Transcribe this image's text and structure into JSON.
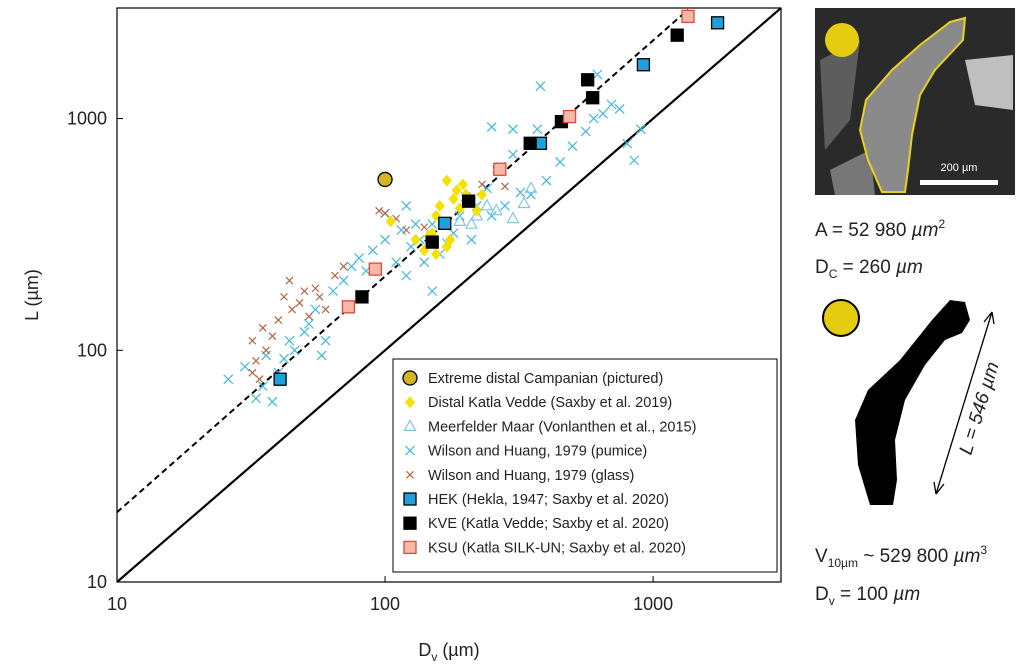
{
  "chart_data": {
    "type": "scatter",
    "xscale": "log",
    "yscale": "log",
    "xlabel": {
      "main": "D",
      "sub": "v",
      "unit": " (µm)"
    },
    "ylabel": "L (µm)",
    "xlim": [
      10,
      3000
    ],
    "ylim": [
      10,
      3000
    ],
    "xticks": [
      10,
      100,
      1000
    ],
    "yticks": [
      10,
      100,
      1000
    ],
    "legend": "lower right",
    "lines": [
      {
        "style": "solid",
        "color": "#000000",
        "x": [
          10,
          3000
        ],
        "y": [
          10,
          3000
        ]
      },
      {
        "style": "dashed",
        "color": "#000000",
        "x": [
          10,
          1350
        ],
        "y": [
          20,
          2950
        ]
      }
    ],
    "series": [
      {
        "name": "Wilson and Huang, 1979 (pumice)",
        "marker": "x",
        "color": "#3fb8e6",
        "x": [
          26,
          30,
          33,
          35,
          36,
          38,
          40,
          42,
          44,
          46,
          50,
          52,
          55,
          58,
          60,
          64,
          70,
          75,
          80,
          85,
          90,
          100,
          110,
          115,
          120,
          125,
          135,
          140,
          150,
          160,
          170,
          180,
          190,
          200,
          210,
          220,
          240,
          250,
          270,
          280,
          300,
          320,
          350,
          370,
          400,
          450,
          500,
          560,
          600,
          650,
          700,
          750,
          800,
          850,
          900,
          620,
          250,
          300,
          380,
          150,
          130,
          120,
          100
        ],
        "y": [
          75,
          85,
          62,
          70,
          95,
          60,
          80,
          92,
          110,
          100,
          120,
          130,
          150,
          95,
          110,
          180,
          200,
          230,
          250,
          220,
          270,
          300,
          240,
          330,
          210,
          280,
          300,
          240,
          350,
          260,
          290,
          320,
          380,
          460,
          300,
          420,
          500,
          380,
          620,
          420,
          700,
          480,
          470,
          900,
          540,
          650,
          760,
          880,
          1000,
          1050,
          1150,
          1100,
          780,
          660,
          900,
          1550,
          920,
          900,
          1380,
          180,
          350,
          420,
          390
        ]
      },
      {
        "name": "Wilson and Huang, 1979 (glass)",
        "marker": "xs",
        "color": "#b5633e",
        "x": [
          32,
          32,
          33,
          34,
          35,
          36,
          38,
          40,
          42,
          44,
          45,
          48,
          50,
          52,
          55,
          57,
          60,
          65,
          70,
          95,
          100,
          110,
          120,
          140,
          200,
          230,
          260,
          280
        ],
        "y": [
          110,
          80,
          90,
          75,
          125,
          100,
          115,
          135,
          170,
          200,
          150,
          160,
          180,
          140,
          185,
          170,
          150,
          210,
          230,
          400,
          390,
          370,
          330,
          340,
          430,
          520,
          600,
          510
        ]
      },
      {
        "name": "Meerfelder Maar (Vonlanthen et al., 2015)",
        "marker": "triangle",
        "color": "#7ec8e3",
        "x": [
          190,
          210,
          240,
          260,
          300,
          330,
          350,
          220
        ],
        "y": [
          360,
          350,
          420,
          400,
          370,
          430,
          500,
          380
        ]
      },
      {
        "name": "Distal Katla Vedde (Saxby et al. 2019)",
        "marker": "diamond",
        "color": "#f5e000",
        "x": [
          105,
          130,
          140,
          150,
          155,
          160,
          165,
          170,
          175,
          180,
          185,
          190,
          195,
          200,
          210,
          220,
          230,
          170,
          155,
          145
        ],
        "y": [
          360,
          300,
          270,
          320,
          380,
          420,
          350,
          280,
          300,
          450,
          490,
          410,
          520,
          470,
          450,
          400,
          470,
          540,
          260,
          310
        ]
      },
      {
        "name": "HEK (Hekla, 1947; Saxby et al. 2020)",
        "marker": "square",
        "color": "#1ea0dc",
        "x": [
          40.6,
          167,
          380,
          920,
          1740
        ],
        "y": [
          75,
          353,
          782,
          1707,
          2590
        ]
      },
      {
        "name": "KVE (Katla Vedde; Saxby et al. 2020)",
        "marker": "square",
        "color": "#000000",
        "x": [
          82,
          150,
          205,
          348,
          455,
          570,
          595,
          1230
        ],
        "y": [
          170,
          293,
          440,
          782,
          970,
          1470,
          1230,
          2290
        ]
      },
      {
        "name": "KSU (Katla SILK-UN; Saxby et al. 2020)",
        "marker": "square",
        "color": "#f7b8a8",
        "edge": "#e04a3a",
        "x": [
          73,
          92,
          268,
          488,
          1350
        ],
        "y": [
          154,
          224,
          604,
          1020,
          2760
        ]
      },
      {
        "name": "Extreme distal Campanian (pictured)",
        "marker": "circle",
        "color": "#d4b526",
        "x": [
          100
        ],
        "y": [
          546
        ]
      }
    ],
    "legend_order": [
      7,
      3,
      2,
      0,
      1,
      4,
      5,
      6
    ]
  },
  "panel": {
    "scale_bar": "200 µm",
    "area": {
      "text": "A = 52 980 ",
      "unit": "µm",
      "sup": "2"
    },
    "dc": {
      "main": "D",
      "sub": "C",
      "text": " = 260 ",
      "unit": "µm"
    },
    "length": {
      "text": "L = 546 ",
      "unit": "µm"
    },
    "volume": {
      "main": "V",
      "sub": "10µm",
      "text": " ~ 529 800 ",
      "unit": "µm",
      "sup": "3"
    },
    "dv": {
      "main": "D",
      "sub": "v",
      "text": " = 100 ",
      "unit": "µm"
    }
  }
}
